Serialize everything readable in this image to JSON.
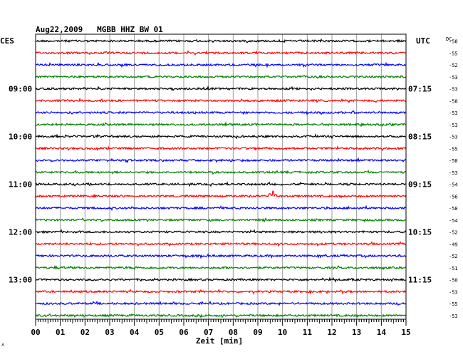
{
  "header": {
    "title": "Aug22,2009   MGBB HHZ BW 01",
    "left_zone": "CES",
    "right_zone": "UTC",
    "dc_label": "DC"
  },
  "chart_data": {
    "type": "line",
    "title": "Aug22,2009   MGBB HHZ BW 01",
    "xlabel": "Zeit [min]",
    "ylabel": "",
    "x_ticks": [
      "00",
      "01",
      "02",
      "03",
      "04",
      "05",
      "06",
      "07",
      "08",
      "09",
      "10",
      "11",
      "12",
      "13",
      "14",
      "15"
    ],
    "xlim": [
      0,
      15
    ],
    "rows": 24,
    "row_colors": [
      "#000000",
      "#ff0000",
      "#0000ff",
      "#008000"
    ],
    "left_labels": [
      {
        "row": 4,
        "text": "09:00"
      },
      {
        "row": 8,
        "text": "10:00"
      },
      {
        "row": 12,
        "text": "11:00"
      },
      {
        "row": 16,
        "text": "12:00"
      },
      {
        "row": 20,
        "text": "13:00"
      }
    ],
    "right_labels": [
      {
        "row": 4,
        "text": "07:15"
      },
      {
        "row": 8,
        "text": "08:15"
      },
      {
        "row": 12,
        "text": "09:15"
      },
      {
        "row": 16,
        "text": "10:15"
      },
      {
        "row": 20,
        "text": "11:15"
      }
    ],
    "dc_offsets": [
      "-58",
      "-55",
      "-52",
      "-53",
      "-53",
      "-58",
      "-53",
      "-53",
      "-53",
      "-55",
      "-58",
      "-53",
      "-54",
      "-56",
      "-58",
      "-54",
      "-52",
      "-49",
      "-52",
      "-51",
      "-50",
      "-53",
      "-55",
      "-53"
    ],
    "events": [
      {
        "row": 13,
        "minute": 9.5,
        "peak_amplitude": 1.0
      }
    ],
    "grid": true
  },
  "footer": {
    "corner_mark": "ʌ"
  }
}
